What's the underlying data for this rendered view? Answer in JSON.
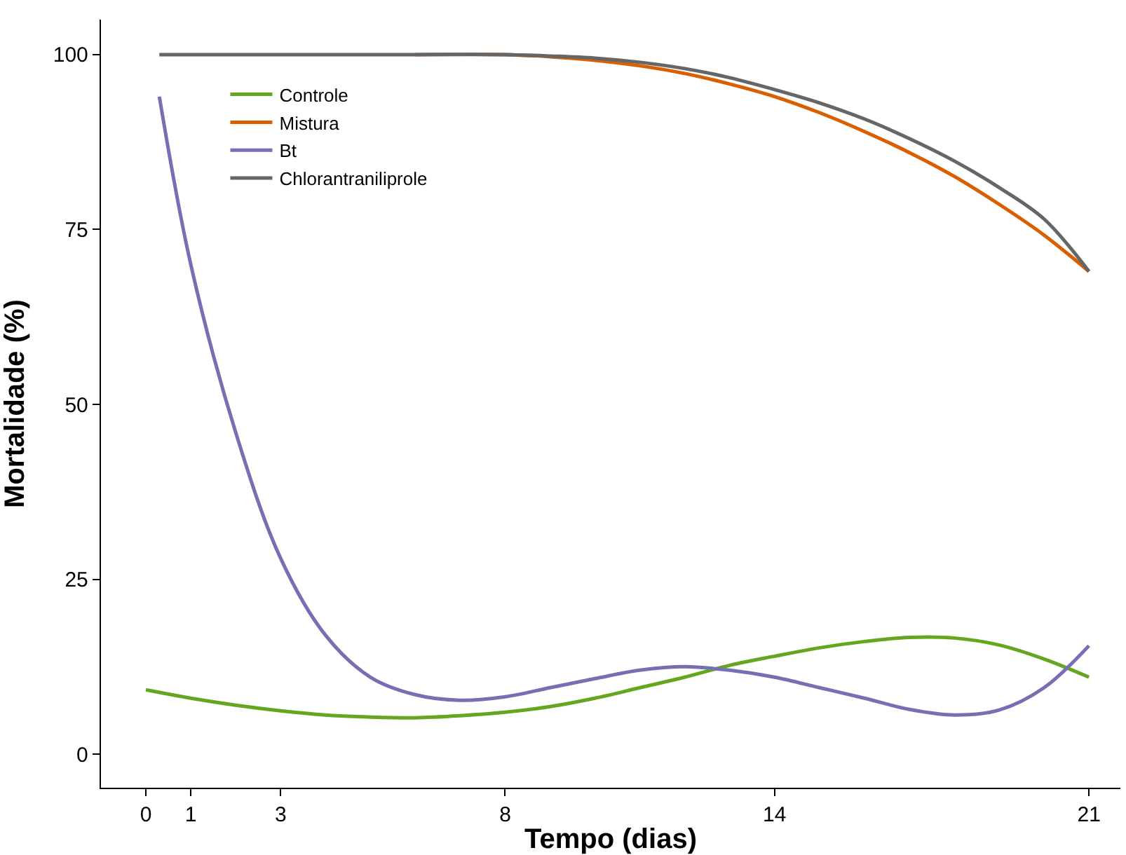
{
  "chart_data": {
    "type": "line",
    "xlabel": "Tempo (dias)",
    "ylabel": "Mortalidade (%)",
    "xlim": [
      -1,
      21.7
    ],
    "xticks": [
      0,
      1,
      3,
      8,
      14,
      21
    ],
    "ylim": [
      -4.8,
      105
    ],
    "yticks": [
      0,
      25,
      50,
      75,
      100
    ],
    "legend": "top left",
    "marker": "none",
    "line_style": "solid",
    "series": [
      {
        "name": "Controle",
        "color": "#66a61e",
        "x": [
          0,
          1,
          2,
          3,
          4,
          5,
          6,
          7,
          8,
          9,
          10,
          11,
          12,
          13,
          14,
          15,
          16,
          17,
          18,
          19,
          20,
          21
        ],
        "values": [
          9.2,
          8,
          7,
          6.2,
          5.6,
          5.3,
          5.2,
          5.5,
          6,
          6.8,
          8,
          9.5,
          11,
          12.7,
          14,
          15.2,
          16.1,
          16.7,
          16.6,
          15.6,
          13.6,
          11
        ]
      },
      {
        "name": "Mistura",
        "color": "#d95f02",
        "x": [
          6,
          8,
          9,
          10,
          11,
          12,
          13,
          14,
          15,
          16,
          17,
          18,
          19,
          20,
          21
        ],
        "values": [
          100,
          100,
          99.7,
          99.2,
          98.4,
          97.3,
          95.8,
          94,
          91.7,
          89,
          86,
          82.6,
          78.6,
          74.2,
          69
        ]
      },
      {
        "name": "Bt",
        "color": "#7570b3",
        "x": [
          0.3,
          1,
          2,
          3,
          4,
          5,
          6,
          7,
          8,
          9,
          10,
          11,
          12,
          13,
          14,
          15,
          16,
          17,
          18,
          19,
          20,
          21
        ],
        "values": [
          94,
          70,
          46,
          28,
          17,
          11,
          8.5,
          7.7,
          8.2,
          9.5,
          10.8,
          12,
          12.5,
          12,
          11,
          9.5,
          8,
          6.4,
          5.6,
          6.3,
          9.5,
          15.5
        ]
      },
      {
        "name": "Chlorantraniliprole",
        "color": "#666666",
        "x": [
          0.3,
          2,
          4,
          6,
          8,
          9,
          10,
          11,
          12,
          13,
          14,
          15,
          16,
          17,
          18,
          19,
          20,
          21
        ],
        "values": [
          100,
          100,
          100,
          100,
          100,
          99.8,
          99.5,
          98.9,
          98,
          96.7,
          95,
          93.1,
          90.8,
          88,
          84.8,
          81,
          76.5,
          69
        ]
      }
    ]
  }
}
